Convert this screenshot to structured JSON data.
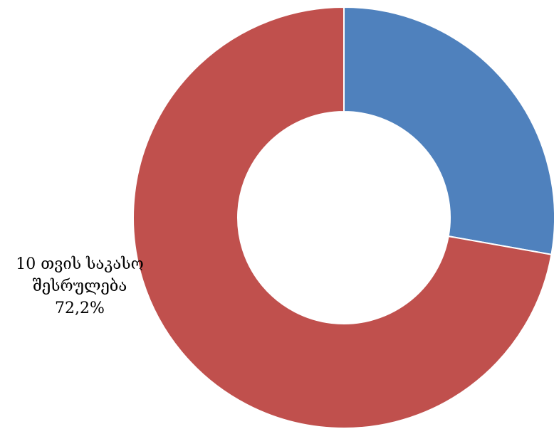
{
  "chart_data": {
    "type": "donut",
    "series": [
      {
        "value": 27.8,
        "color": "#4F81BD"
      },
      {
        "label_lines": [
          "10 თვის საკასო",
          "შესრულება"
        ],
        "value": 72.2,
        "value_label": "72,2%",
        "color": "#C0504D"
      }
    ],
    "start_angle_deg": 0,
    "direction": "clockwise"
  }
}
